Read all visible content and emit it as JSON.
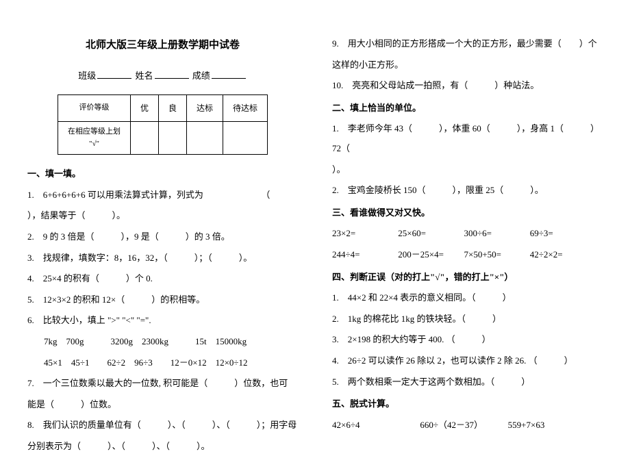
{
  "header": {
    "title": "北师大版三年级上册数学期中试卷",
    "class_label": "班级",
    "name_label": "姓名",
    "score_label": "成绩"
  },
  "table": {
    "row1_col1": "评价等级",
    "row1_col2": "优",
    "row1_col3": "良",
    "row1_col4": "达标",
    "row1_col5": "待达标",
    "row2_col1a": "在相应等级上划",
    "row2_col1b": "\"√\""
  },
  "section1": {
    "header": "一、填一填。",
    "q1a": "1.　6+6+6+6+6 可以用乘法算式计算，列式为　　　　　　　（",
    "q1b": "），结果等于（　　　）。",
    "q2": "2.　9 的 3 倍是（　　　），9 是（　　　）的 3 倍。",
    "q3": "3.　找规律，填数字：8，16，32，（　　　）；（　　　）。",
    "q4": "4.　25×4 的积有（　　　）个 0.",
    "q5": "5.　12×3×2 的积和 12×（　　　）的积相等。",
    "q6": "6.　比较大小，填上 \">\" \"<\" \"=\".",
    "q6a": "7kg　700g　　　3200g　2300kg　　　15t　15000kg",
    "q6b": "45×1　45÷1　　62÷2　96÷3　　12－0×12　12×0÷12",
    "q7a": "7.　一个三位数乘以最大的一位数, 积可能是（　　　）位数，也可",
    "q7b": "能是（　　　）位数。",
    "q8a": "8.　我们认识的质量单位有（　　　）、（　　　）、（　　　）；用字母",
    "q8b": "分别表示为（　　　）、（　　　）、（　　　）。"
  },
  "section1_right": {
    "q9a": "9.　用大小相同的正方形搭成一个大的正方形，最少需要（　　）个",
    "q9b": "这样的小正方形。",
    "q10": "10.　亮亮和父母站成一拍照，有（　　　）种站法。"
  },
  "section2": {
    "header": "二、填上恰当的单位。",
    "q1a": "1.　李老师今年 43（　　　），体重 60（　　　），身高 1（　　　）72（",
    "q1b": "）。",
    "q2": "2.　宝鸡金陵桥长 150（　　　），限重 25（　　　）。"
  },
  "section3": {
    "header": "三、看谁做得又对又快。",
    "row1_1": "23×2=",
    "row1_2": "25×60=",
    "row1_3": "300÷6=",
    "row1_4": "69÷3=",
    "row2_1": "244÷4=",
    "row2_2": "200－25×4=",
    "row2_3": "7×50+50=",
    "row2_4": "42÷2×2="
  },
  "section4": {
    "header": "四、判断正误（对的打上\"√\"，错的打上\"×\"）",
    "q1": "1.　44×2 和 22×4 表示的意义相同。（　　　）",
    "q2": "2.　1kg 的棉花比 1kg 的铁块轻。（　　　）",
    "q3": "3.　2×198 的积大约等于 400. （　　　）",
    "q4": "4.　26÷2 可以读作 26 除以 2，也可以读作 2 除 26. （　　　）",
    "q5": "5.　两个数相乘一定大于这两个数相加。（　　　）"
  },
  "section5": {
    "header": "五、脱式计算。",
    "row1_1": "42×6÷4",
    "row1_2": "660÷（42－37）",
    "row1_3": "559+7×63"
  }
}
